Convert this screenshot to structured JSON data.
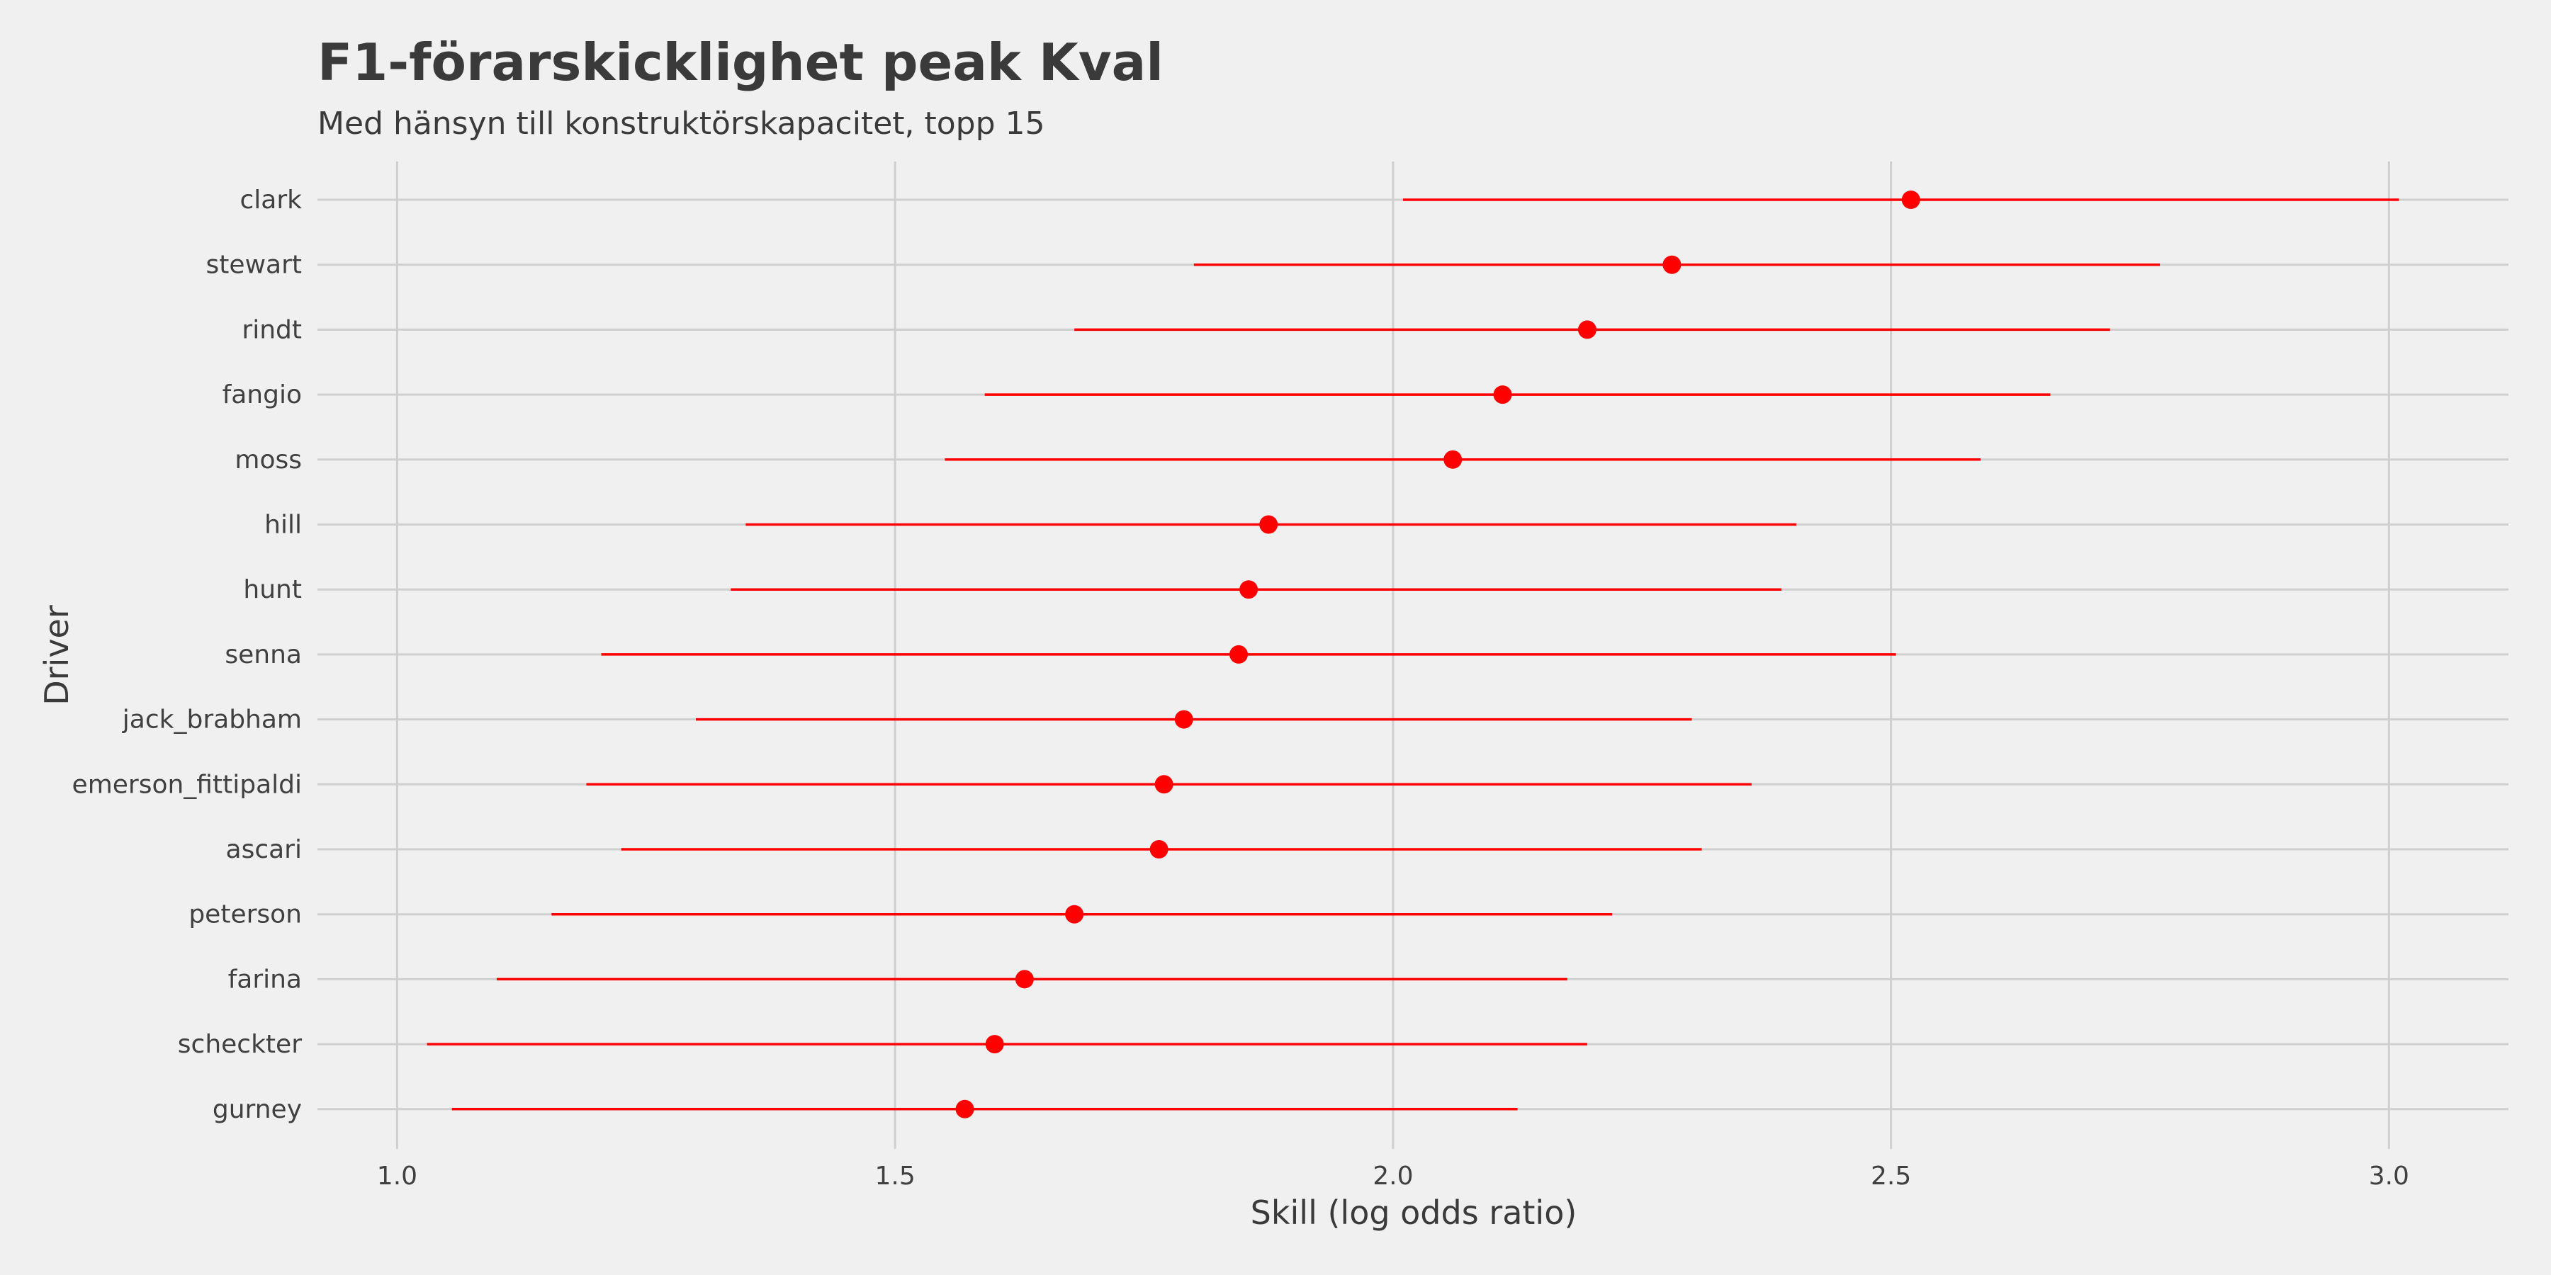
{
  "chart_data": {
    "type": "dot-interval",
    "title": "F1-förarskicklighet peak Kval",
    "subtitle": "Med hänsyn till konstruktörskapacitet, topp 15",
    "xlabel": "Skill (log odds ratio)",
    "ylabel": "Driver",
    "xlim": [
      0.92,
      3.12
    ],
    "xticks": [
      "1.0",
      "1.5",
      "2.0",
      "2.5",
      "3.0"
    ],
    "grid": true,
    "color": "#ff0000",
    "drivers": [
      {
        "name": "clark",
        "value": 2.52,
        "low": 2.01,
        "high": 3.01
      },
      {
        "name": "stewart",
        "value": 2.28,
        "low": 1.8,
        "high": 2.77
      },
      {
        "name": "rindt",
        "value": 2.195,
        "low": 1.68,
        "high": 2.72
      },
      {
        "name": "fangio",
        "value": 2.11,
        "low": 1.59,
        "high": 2.66
      },
      {
        "name": "moss",
        "value": 2.06,
        "low": 1.55,
        "high": 2.59
      },
      {
        "name": "hill",
        "value": 1.875,
        "low": 1.35,
        "high": 2.405
      },
      {
        "name": "hunt",
        "value": 1.855,
        "low": 1.335,
        "high": 2.39
      },
      {
        "name": "senna",
        "value": 1.845,
        "low": 1.205,
        "high": 2.505
      },
      {
        "name": "jack_brabham",
        "value": 1.79,
        "low": 1.3,
        "high": 2.3
      },
      {
        "name": "emerson_fittipaldi",
        "value": 1.77,
        "low": 1.19,
        "high": 2.36
      },
      {
        "name": "ascari",
        "value": 1.765,
        "low": 1.225,
        "high": 2.31
      },
      {
        "name": "peterson",
        "value": 1.68,
        "low": 1.155,
        "high": 2.22
      },
      {
        "name": "farina",
        "value": 1.63,
        "low": 1.1,
        "high": 2.175
      },
      {
        "name": "scheckter",
        "value": 1.6,
        "low": 1.03,
        "high": 2.195
      },
      {
        "name": "gurney",
        "value": 1.57,
        "low": 1.055,
        "high": 2.125
      }
    ]
  }
}
